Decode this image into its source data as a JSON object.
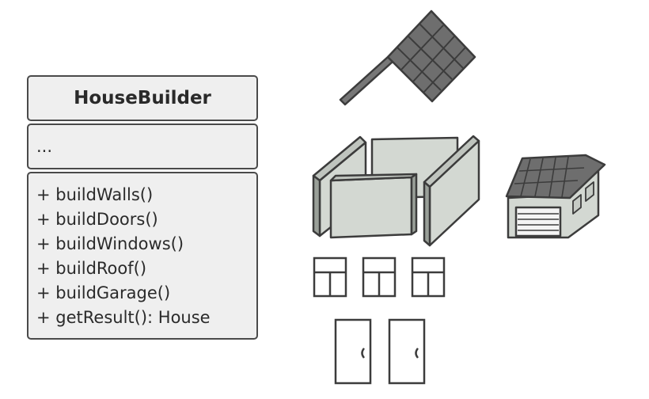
{
  "uml_class": {
    "name": "HouseBuilder",
    "fields": "...",
    "methods": [
      "+ buildWalls()",
      "+ buildDoors()",
      "+ buildWindows()",
      "+ buildRoof()",
      "+ buildGarage()",
      "+ getResult(): House"
    ]
  },
  "icons": [
    "roof-icon",
    "walls-icon",
    "garage-icon",
    "window-icon",
    "door-icon"
  ],
  "colors": {
    "outline": "#3c3c3c",
    "box_fill": "#efefef",
    "roof_tile": "#6e6e6e",
    "wall_fill": "#d3d8d2"
  }
}
